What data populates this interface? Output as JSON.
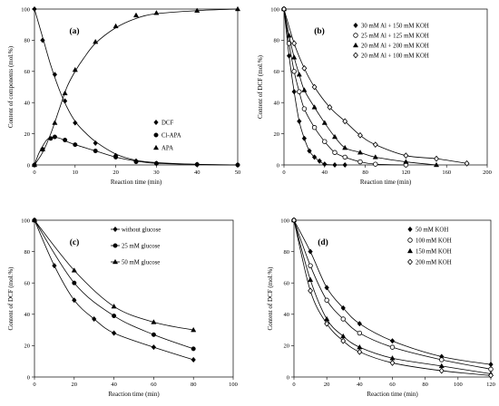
{
  "chart_data": [
    {
      "type": "line",
      "panel_label": "(a)",
      "xlabel": "Reaction time (min)",
      "ylabel": "Content of components (mol.%)",
      "xlim": [
        0,
        50
      ],
      "ylim": [
        0,
        100
      ],
      "xticks": [
        0,
        10,
        20,
        30,
        40,
        50
      ],
      "yticks": [
        0,
        20,
        40,
        60,
        80,
        100
      ],
      "grid": false,
      "legend_position": "center-right",
      "series": [
        {
          "name": "DCF",
          "marker": "diamond",
          "points": [
            [
              0,
              100
            ],
            [
              2,
              80
            ],
            [
              5,
              58
            ],
            [
              7.5,
              41
            ],
            [
              10,
              27
            ],
            [
              15,
              14
            ],
            [
              20,
              6
            ],
            [
              25,
              2.5
            ],
            [
              30,
              1
            ],
            [
              40,
              0.3
            ],
            [
              50,
              0
            ]
          ],
          "curve": [
            [
              0,
              100
            ],
            [
              2,
              82
            ],
            [
              4,
              64
            ],
            [
              6,
              49
            ],
            [
              8,
              37
            ],
            [
              10,
              28
            ],
            [
              12,
              22
            ],
            [
              15,
              15
            ],
            [
              20,
              7
            ],
            [
              25,
              3
            ],
            [
              30,
              1.5
            ],
            [
              40,
              0.4
            ],
            [
              50,
              0
            ]
          ]
        },
        {
          "name": "Cl-APA",
          "marker": "circle",
          "points": [
            [
              0,
              0
            ],
            [
              2,
              10
            ],
            [
              4,
              17
            ],
            [
              5,
              18
            ],
            [
              7.5,
              16
            ],
            [
              10,
              13
            ],
            [
              15,
              9
            ],
            [
              20,
              5
            ],
            [
              25,
              2
            ],
            [
              30,
              1
            ],
            [
              40,
              0.3
            ],
            [
              50,
              0
            ]
          ],
          "curve": [
            [
              0,
              0
            ],
            [
              1,
              7
            ],
            [
              2,
              12
            ],
            [
              3,
              16
            ],
            [
              4,
              17.5
            ],
            [
              6,
              17.3
            ],
            [
              8,
              15
            ],
            [
              10,
              13
            ],
            [
              15,
              9
            ],
            [
              20,
              5
            ],
            [
              25,
              2.5
            ],
            [
              30,
              1
            ],
            [
              40,
              0.3
            ],
            [
              50,
              0
            ]
          ]
        },
        {
          "name": "APA",
          "marker": "triangle",
          "points": [
            [
              0,
              0
            ],
            [
              2,
              10
            ],
            [
              5,
              27
            ],
            [
              7.5,
              46
            ],
            [
              10,
              61
            ],
            [
              15,
              79
            ],
            [
              20,
              89
            ],
            [
              25,
              96
            ],
            [
              30,
              97.5
            ],
            [
              40,
              99
            ],
            [
              50,
              100
            ]
          ],
          "curve": [
            [
              0,
              0
            ],
            [
              2,
              8
            ],
            [
              4,
              20
            ],
            [
              6,
              35
            ],
            [
              8,
              50
            ],
            [
              10,
              60
            ],
            [
              12,
              68
            ],
            [
              15,
              78
            ],
            [
              20,
              88
            ],
            [
              25,
              94
            ],
            [
              30,
              97
            ],
            [
              40,
              99
            ],
            [
              50,
              100
            ]
          ]
        }
      ]
    },
    {
      "type": "line",
      "panel_label": "(b)",
      "xlabel": "Reaction time (min)",
      "ylabel": "Content of DCF (mol.%)",
      "xlim": [
        0,
        200
      ],
      "ylim": [
        0,
        100
      ],
      "xticks": [
        0,
        40,
        80,
        120,
        160,
        200
      ],
      "yticks": [
        0,
        20,
        40,
        60,
        80,
        100
      ],
      "grid": false,
      "legend_position": "top-right",
      "series": [
        {
          "name": "30 mM Al + 150 mM KOH",
          "marker": "diamond",
          "points": [
            [
              0,
              100
            ],
            [
              5,
              70
            ],
            [
              10,
              47
            ],
            [
              15,
              28
            ],
            [
              20,
              17
            ],
            [
              25,
              9
            ],
            [
              30,
              5
            ],
            [
              35,
              2.5
            ],
            [
              40,
              0.5
            ],
            [
              50,
              0
            ],
            [
              60,
              0
            ]
          ]
        },
        {
          "name": "25 mM Al + 125 mM KOH",
          "marker": "circle-open",
          "points": [
            [
              0,
              100
            ],
            [
              5,
              78
            ],
            [
              10,
              60
            ],
            [
              15,
              47
            ],
            [
              20,
              36
            ],
            [
              30,
              24
            ],
            [
              40,
              15
            ],
            [
              50,
              8
            ],
            [
              60,
              5
            ],
            [
              75,
              2
            ],
            [
              90,
              0.5
            ],
            [
              120,
              0
            ]
          ]
        },
        {
          "name": "20 mM Al + 200 mM KOH",
          "marker": "triangle",
          "points": [
            [
              0,
              100
            ],
            [
              5,
              83
            ],
            [
              10,
              69
            ],
            [
              15,
              58
            ],
            [
              20,
              48
            ],
            [
              30,
              37
            ],
            [
              40,
              27
            ],
            [
              50,
              18
            ],
            [
              60,
              11
            ],
            [
              75,
              8
            ],
            [
              90,
              5
            ],
            [
              120,
              2
            ],
            [
              150,
              0
            ]
          ]
        },
        {
          "name": "20 mM Al + 100 mM KOH",
          "marker": "diamond-open",
          "points": [
            [
              0,
              100
            ],
            [
              10,
              78
            ],
            [
              20,
              62
            ],
            [
              30,
              50
            ],
            [
              45,
              37
            ],
            [
              60,
              28
            ],
            [
              75,
              19
            ],
            [
              90,
              13
            ],
            [
              120,
              6
            ],
            [
              150,
              4
            ],
            [
              180,
              1
            ]
          ]
        }
      ]
    },
    {
      "type": "line",
      "panel_label": "(c)",
      "xlabel": "Reaction time (min)",
      "ylabel": "Content of DCF (mol.%)",
      "xlim": [
        0,
        100
      ],
      "ylim": [
        0,
        100
      ],
      "xticks": [
        0,
        20,
        40,
        60,
        80,
        100
      ],
      "yticks": [
        0,
        20,
        40,
        60,
        80,
        100
      ],
      "grid": false,
      "legend_position": "top-right",
      "series": [
        {
          "name": "without glucose",
          "marker": "diamond",
          "points": [
            [
              0,
              100
            ],
            [
              10,
              71
            ],
            [
              20,
              49
            ],
            [
              30,
              37
            ],
            [
              40,
              28
            ],
            [
              60,
              19
            ],
            [
              80,
              11
            ]
          ]
        },
        {
          "name": "25 mM glucose",
          "marker": "circle",
          "points": [
            [
              0,
              100
            ],
            [
              20,
              60
            ],
            [
              40,
              39
            ],
            [
              60,
              27
            ],
            [
              80,
              18
            ]
          ]
        },
        {
          "name": "50 mM glucose",
          "marker": "triangle",
          "points": [
            [
              0,
              100
            ],
            [
              20,
              68
            ],
            [
              40,
              45
            ],
            [
              60,
              35
            ],
            [
              80,
              30
            ]
          ]
        }
      ]
    },
    {
      "type": "line",
      "panel_label": "(d)",
      "xlabel": "Reaction time (min)",
      "ylabel": "Content of DCF (mol.%)",
      "xlim": [
        0,
        120
      ],
      "ylim": [
        0,
        100
      ],
      "xticks": [
        0,
        20,
        40,
        60,
        80,
        100,
        120
      ],
      "yticks": [
        0,
        20,
        40,
        60,
        80,
        100
      ],
      "grid": false,
      "legend_position": "top-right",
      "series": [
        {
          "name": "50 mM KOH",
          "marker": "diamond",
          "points": [
            [
              0,
              100
            ],
            [
              10,
              80
            ],
            [
              20,
              57
            ],
            [
              30,
              44
            ],
            [
              40,
              34
            ],
            [
              60,
              23
            ],
            [
              90,
              13
            ],
            [
              120,
              8
            ]
          ]
        },
        {
          "name": "100 mM KOH",
          "marker": "circle-open",
          "points": [
            [
              0,
              100
            ],
            [
              10,
              71
            ],
            [
              20,
              49
            ],
            [
              30,
              37
            ],
            [
              40,
              28
            ],
            [
              60,
              19
            ],
            [
              90,
              11
            ],
            [
              120,
              5
            ]
          ]
        },
        {
          "name": "150 mM KOH",
          "marker": "triangle",
          "points": [
            [
              0,
              100
            ],
            [
              10,
              62
            ],
            [
              20,
              37
            ],
            [
              30,
              26
            ],
            [
              40,
              19
            ],
            [
              60,
              12
            ],
            [
              90,
              7
            ],
            [
              120,
              2
            ]
          ]
        },
        {
          "name": "200 mM KOH",
          "marker": "diamond-open",
          "points": [
            [
              0,
              100
            ],
            [
              10,
              55
            ],
            [
              20,
              34
            ],
            [
              30,
              23
            ],
            [
              40,
              16
            ],
            [
              60,
              9
            ],
            [
              90,
              4
            ],
            [
              120,
              1
            ]
          ]
        }
      ]
    }
  ]
}
